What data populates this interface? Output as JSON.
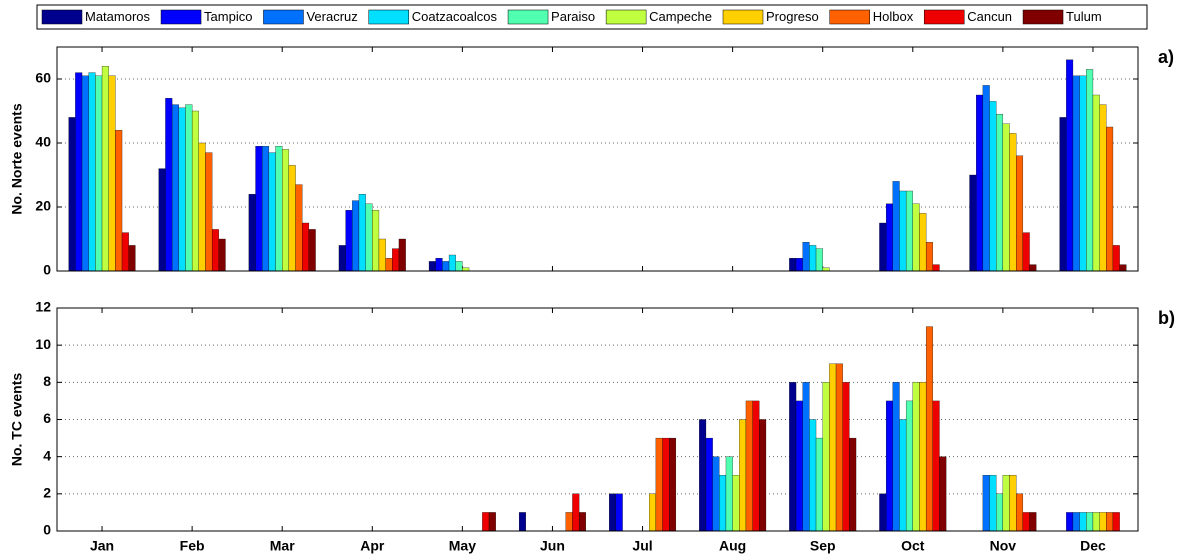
{
  "chart_data": [
    {
      "type": "bar",
      "ylabel": "No. Norte events",
      "panel_label": "a)",
      "ylim": [
        0,
        70
      ],
      "yticks": [
        0,
        20,
        40,
        60
      ],
      "grid": true,
      "series": [
        {
          "name": "Matamoros",
          "color": "#00008f",
          "values": [
            48,
            32,
            24,
            8,
            3,
            0,
            0,
            0,
            4,
            15,
            30,
            48
          ]
        },
        {
          "name": "Tampico",
          "color": "#0000ff",
          "values": [
            62,
            54,
            39,
            19,
            4,
            0,
            0,
            0,
            4,
            21,
            55,
            66
          ]
        },
        {
          "name": "Veracruz",
          "color": "#0070ff",
          "values": [
            61,
            52,
            39,
            22,
            3,
            0,
            0,
            0,
            9,
            28,
            58,
            61
          ]
        },
        {
          "name": "Coatzacoalcos",
          "color": "#00dfff",
          "values": [
            62,
            51,
            37,
            24,
            5,
            0,
            0,
            0,
            8,
            25,
            53,
            61
          ]
        },
        {
          "name": "Paraiso",
          "color": "#50ffaf",
          "values": [
            61,
            52,
            39,
            21,
            3,
            0,
            0,
            0,
            7,
            25,
            49,
            63
          ]
        },
        {
          "name": "Campeche",
          "color": "#bfff40",
          "values": [
            64,
            50,
            38,
            19,
            1,
            0,
            0,
            0,
            1,
            21,
            46,
            55
          ]
        },
        {
          "name": "Progreso",
          "color": "#ffcf00",
          "values": [
            61,
            40,
            33,
            10,
            0,
            0,
            0,
            0,
            0,
            18,
            43,
            52
          ]
        },
        {
          "name": "Holbox",
          "color": "#ff6000",
          "values": [
            44,
            37,
            27,
            4,
            0,
            0,
            0,
            0,
            0,
            9,
            36,
            45
          ]
        },
        {
          "name": "Cancun",
          "color": "#ef0000",
          "values": [
            12,
            13,
            15,
            7,
            0,
            0,
            0,
            0,
            0,
            2,
            12,
            8
          ]
        },
        {
          "name": "Tulum",
          "color": "#800000",
          "values": [
            8,
            10,
            13,
            10,
            0,
            0,
            0,
            0,
            0,
            0,
            2,
            2
          ]
        }
      ]
    },
    {
      "type": "bar",
      "ylabel": "No. TC events",
      "panel_label": "b)",
      "categories": [
        "Jan",
        "Feb",
        "Mar",
        "Apr",
        "May",
        "Jun",
        "Jul",
        "Aug",
        "Sep",
        "Oct",
        "Nov",
        "Dec"
      ],
      "ylim": [
        0,
        12
      ],
      "yticks": [
        0,
        2,
        4,
        6,
        8,
        10,
        12
      ],
      "grid": true,
      "series": [
        {
          "values": [
            0,
            0,
            0,
            0,
            0,
            1,
            2,
            6,
            8,
            2,
            0,
            0
          ]
        },
        {
          "values": [
            0,
            0,
            0,
            0,
            0,
            0,
            2,
            5,
            7,
            7,
            0,
            1
          ]
        },
        {
          "values": [
            0,
            0,
            0,
            0,
            0,
            0,
            0,
            4,
            8,
            8,
            3,
            1
          ]
        },
        {
          "values": [
            0,
            0,
            0,
            0,
            0,
            0,
            0,
            3,
            6,
            6,
            3,
            1
          ]
        },
        {
          "values": [
            0,
            0,
            0,
            0,
            0,
            0,
            0,
            4,
            5,
            7,
            2,
            1
          ]
        },
        {
          "values": [
            0,
            0,
            0,
            0,
            0,
            0,
            0,
            3,
            8,
            8,
            3,
            1
          ]
        },
        {
          "values": [
            0,
            0,
            0,
            0,
            0,
            0,
            2,
            6,
            9,
            8,
            3,
            1
          ]
        },
        {
          "values": [
            0,
            0,
            0,
            0,
            0,
            1,
            5,
            7,
            9,
            11,
            2,
            1
          ]
        },
        {
          "values": [
            0,
            0,
            0,
            0,
            1,
            2,
            5,
            7,
            8,
            7,
            1,
            1
          ]
        },
        {
          "values": [
            0,
            0,
            0,
            0,
            1,
            1,
            5,
            6,
            5,
            4,
            1,
            0
          ]
        }
      ]
    }
  ]
}
